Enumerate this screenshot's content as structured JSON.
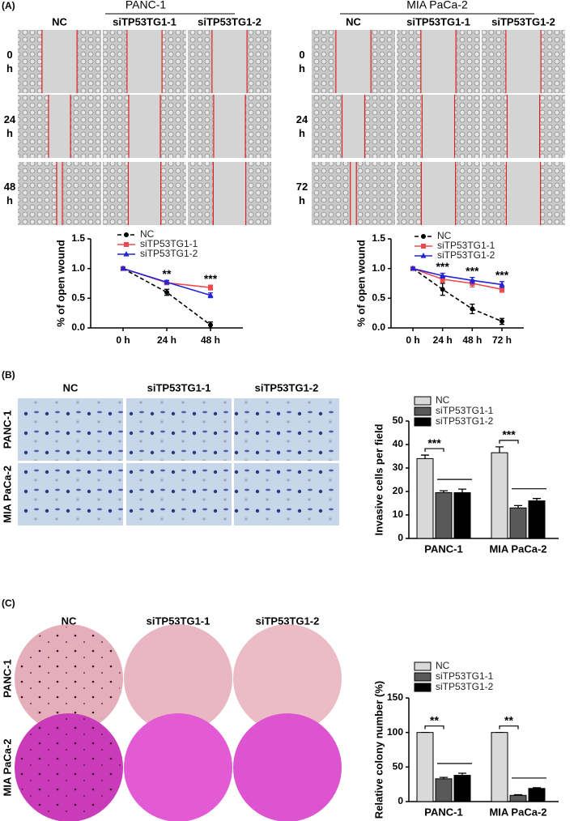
{
  "panel_labels": [
    "(A)",
    "(B)",
    "(C)"
  ],
  "panel_a": {
    "groups": [
      {
        "title": "PANC-1",
        "columns": [
          "NC",
          "siTP53TG1-1",
          "siTP53TG1-2"
        ],
        "rows": [
          "0 h",
          "24 h",
          "48 h"
        ]
      },
      {
        "title": "MIA PaCa-2",
        "columns": [
          "NC",
          "siTP53TG1-1",
          "siTP53TG1-2"
        ],
        "rows": [
          "0 h",
          "24 h",
          "72 h"
        ]
      }
    ]
  },
  "panel_b": {
    "columns": [
      "NC",
      "siTP53TG1-1",
      "siTP53TG1-2"
    ],
    "rows": [
      "PANC-1",
      "MIA PaCa-2"
    ]
  },
  "panel_c": {
    "columns": [
      "NC",
      "siTP53TG1-1",
      "siTP53TG1-2"
    ],
    "rows": [
      "PANC-1",
      "MIA PaCa-2"
    ]
  },
  "chart_data": [
    {
      "type": "line",
      "ylabel": "% of open wound",
      "categories": [
        "0 h",
        "24 h",
        "48 h"
      ],
      "series": [
        {
          "name": "NC",
          "color": "#000000",
          "marker": "circle",
          "dashed": true,
          "values": [
            1.0,
            0.6,
            0.05
          ],
          "errors": [
            0.02,
            0.05,
            0.05
          ]
        },
        {
          "name": "siTP53TG1-1",
          "color": "#f0484c",
          "marker": "square",
          "dashed": false,
          "values": [
            1.0,
            0.76,
            0.68
          ],
          "errors": [
            0.02,
            0.03,
            0.04
          ]
        },
        {
          "name": "siTP53TG1-2",
          "color": "#2323d8",
          "marker": "triangle",
          "dashed": false,
          "values": [
            1.0,
            0.77,
            0.55
          ],
          "errors": [
            0.02,
            0.03,
            0.04
          ]
        }
      ],
      "significance": [
        null,
        "**",
        "***"
      ],
      "ylim": [
        0,
        1.5
      ],
      "yticks": [
        {
          "value": 0,
          "label": "0.0"
        },
        {
          "value": 0.5,
          "label": "0.5"
        },
        {
          "value": 1.0,
          "label": "1.0"
        },
        {
          "value": 1.5,
          "label": "1.5"
        }
      ]
    },
    {
      "type": "line",
      "ylabel": "% of open wound",
      "categories": [
        "0 h",
        "24 h",
        "48 h",
        "72 h"
      ],
      "series": [
        {
          "name": "NC",
          "color": "#000000",
          "marker": "circle",
          "dashed": true,
          "values": [
            1.0,
            0.65,
            0.32,
            0.11
          ],
          "errors": [
            0.02,
            0.1,
            0.08,
            0.05
          ]
        },
        {
          "name": "siTP53TG1-1",
          "color": "#f0484c",
          "marker": "square",
          "dashed": false,
          "values": [
            1.0,
            0.82,
            0.75,
            0.65
          ],
          "errors": [
            0.02,
            0.05,
            0.06,
            0.05
          ]
        },
        {
          "name": "siTP53TG1-2",
          "color": "#2323d8",
          "marker": "triangle",
          "dashed": false,
          "values": [
            1.0,
            0.88,
            0.8,
            0.73
          ],
          "errors": [
            0.02,
            0.04,
            0.05,
            0.05
          ]
        }
      ],
      "significance": [
        null,
        "***",
        "***",
        "***"
      ],
      "ylim": [
        0,
        1.5
      ],
      "yticks": [
        {
          "value": 0,
          "label": "0.0"
        },
        {
          "value": 0.5,
          "label": "0.5"
        },
        {
          "value": 1.0,
          "label": "1.0"
        },
        {
          "value": 1.5,
          "label": "1.5"
        }
      ]
    },
    {
      "type": "bar",
      "ylabel": "Invasive cells per field",
      "categories": [
        "PANC-1",
        "MIA PaCa-2"
      ],
      "series": [
        {
          "name": "NC",
          "color": "#d9d9d9",
          "values": [
            34,
            36.5
          ],
          "errors": [
            1.5,
            2.5
          ]
        },
        {
          "name": "siTP53TG1-1",
          "color": "#595959",
          "values": [
            19.5,
            13
          ],
          "errors": [
            0.8,
            1
          ]
        },
        {
          "name": "siTP53TG1-2",
          "color": "#000000",
          "values": [
            19.5,
            16
          ],
          "errors": [
            1.5,
            1
          ]
        }
      ],
      "significance": [
        "***",
        "***"
      ],
      "ylim": [
        0,
        50
      ],
      "yticks": [
        0,
        10,
        20,
        30,
        40,
        50
      ]
    },
    {
      "type": "bar",
      "ylabel": "Relative colony number (%)",
      "categories": [
        "PANC-1",
        "MIA PaCa-2"
      ],
      "series": [
        {
          "name": "NC",
          "color": "#d9d9d9",
          "values": [
            100,
            100
          ],
          "errors": [
            0,
            0
          ]
        },
        {
          "name": "siTP53TG1-1",
          "color": "#595959",
          "values": [
            33,
            9
          ],
          "errors": [
            2,
            1
          ]
        },
        {
          "name": "siTP53TG1-2",
          "color": "#000000",
          "values": [
            38,
            19
          ],
          "errors": [
            3,
            1
          ]
        }
      ],
      "significance": [
        "**",
        "**"
      ],
      "ylim": [
        0,
        150
      ],
      "yticks": [
        0,
        50,
        100,
        150
      ]
    }
  ]
}
